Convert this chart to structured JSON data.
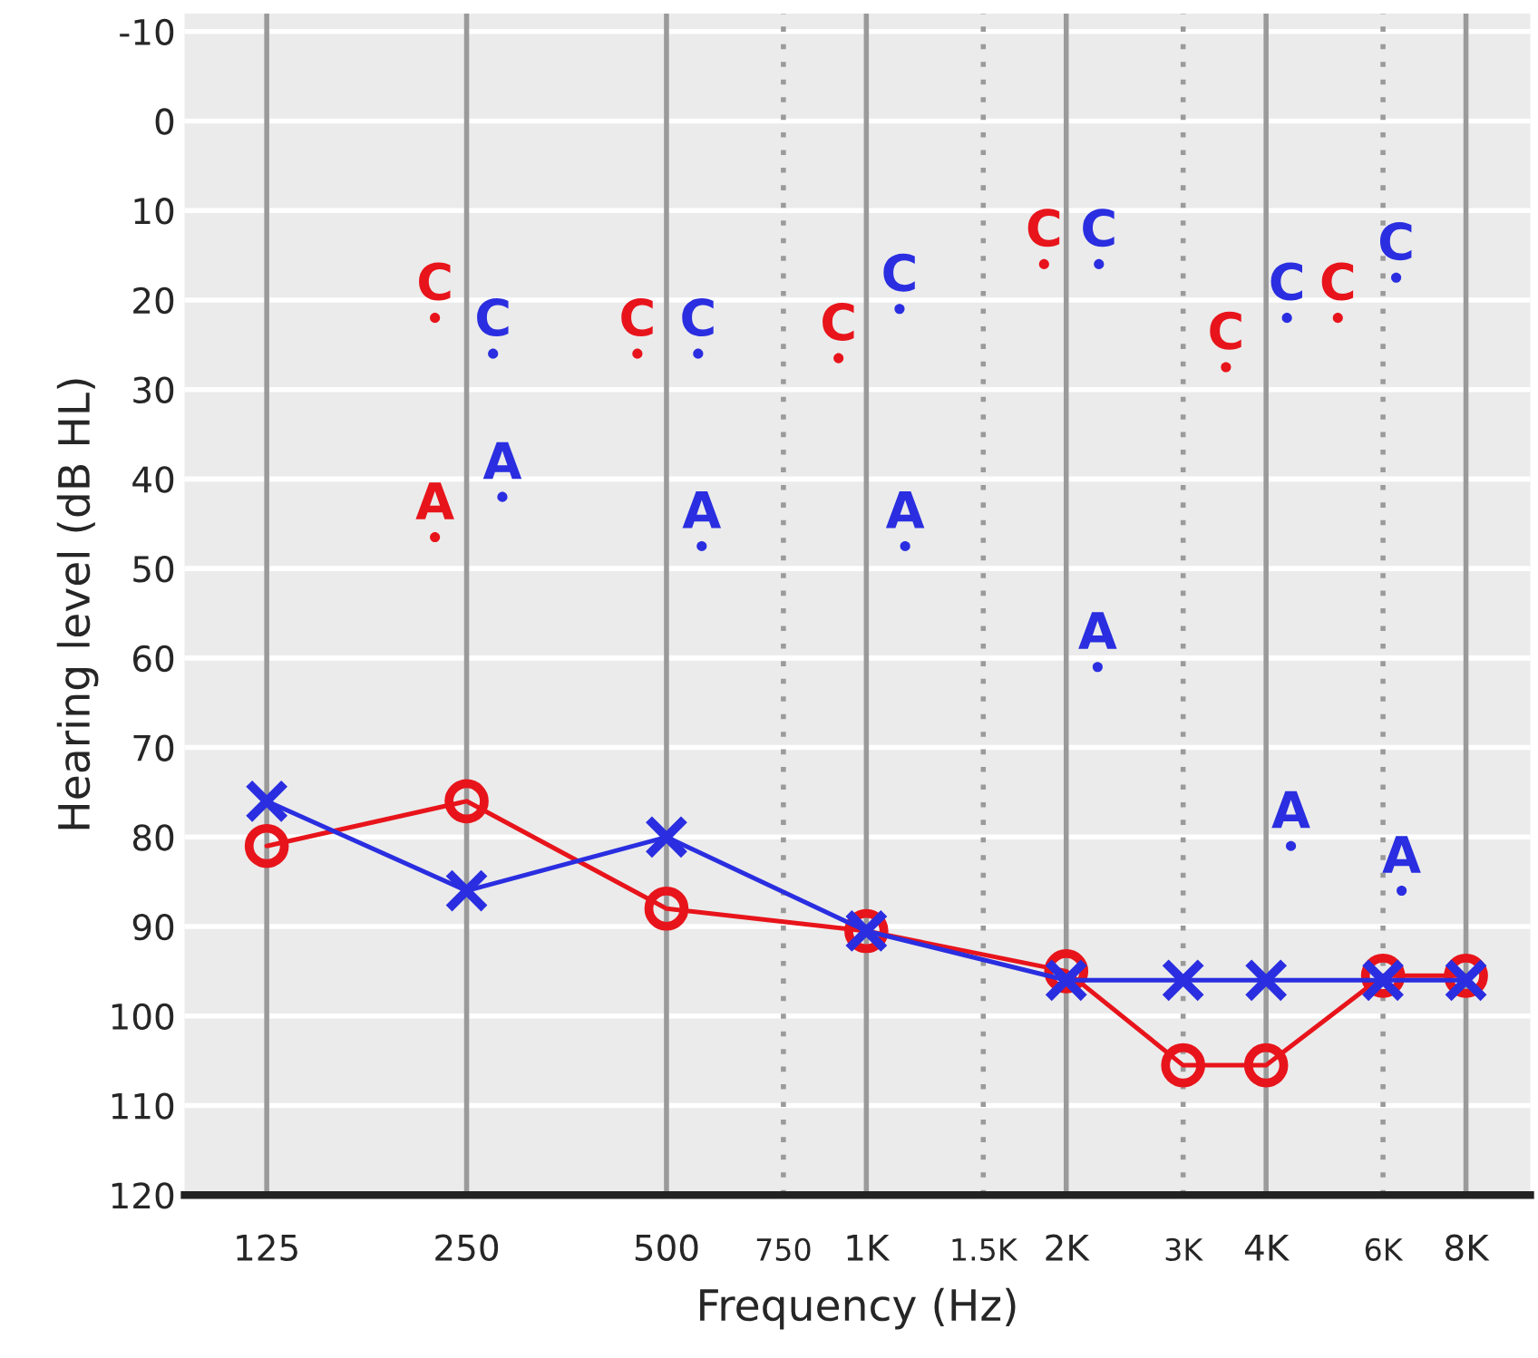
{
  "chart_data": {
    "type": "line",
    "xlabel": "Frequency (Hz)",
    "ylabel": "Hearing level (dB HL)",
    "log": "x",
    "xlim": [
      94,
      10000
    ],
    "xticks": [
      125,
      250,
      500,
      750,
      {
        "value": 1000,
        "label": "1K"
      },
      {
        "value": 1500,
        "label": "1.5K"
      },
      {
        "value": 2000,
        "label": "2K"
      },
      {
        "value": 3000,
        "label": "3K"
      },
      {
        "value": 4000,
        "label": "4K"
      },
      {
        "value": 6000,
        "label": "6K"
      },
      {
        "value": 8000,
        "label": "8K"
      }
    ],
    "ylim": [
      120,
      -12
    ],
    "yticks": [
      -10,
      0,
      10,
      20,
      30,
      40,
      50,
      60,
      70,
      80,
      90,
      100,
      110,
      120
    ],
    "grid": true,
    "legend": false,
    "series": [
      {
        "color": "#e8141b",
        "marker": "circle",
        "x": [
          125,
          250,
          500,
          1000,
          2000,
          3000,
          4000,
          6000,
          8000
        ],
        "values": [
          81,
          76,
          88,
          90.5,
          95,
          105.5,
          105.5,
          95.5,
          95.5
        ]
      },
      {
        "color": "#2a2ee0",
        "marker": "cross",
        "x": [
          125,
          250,
          500,
          1000,
          2000,
          3000,
          4000,
          6000,
          8000
        ],
        "values": [
          76,
          86,
          80,
          90.5,
          96,
          96,
          96,
          96,
          96
        ]
      },
      {
        "type": "scatter",
        "color": "#e8141b",
        "marker": "circle",
        "x": [
          224,
          224,
          452,
          908,
          1852,
          3480,
          5130
        ],
        "values": [
          22,
          46.5,
          26,
          26.5,
          16,
          27.5,
          22
        ],
        "value_labels": [
          "C",
          "A",
          "C",
          "C",
          "C",
          "C",
          "C"
        ]
      },
      {
        "type": "scatter",
        "color": "#2a2ee0",
        "marker": "circle",
        "x": [
          274,
          283,
          558,
          565,
          1122,
          1144,
          2240,
          2230,
          4300,
          4360,
          6280,
          6400
        ],
        "values": [
          26,
          42,
          26,
          47.5,
          21,
          47.5,
          16,
          61,
          22,
          81,
          17.5,
          86
        ],
        "value_labels": [
          "C",
          "A",
          "C",
          "A",
          "C",
          "A",
          "C",
          "A",
          "C",
          "A",
          "C",
          "A"
        ]
      }
    ]
  }
}
